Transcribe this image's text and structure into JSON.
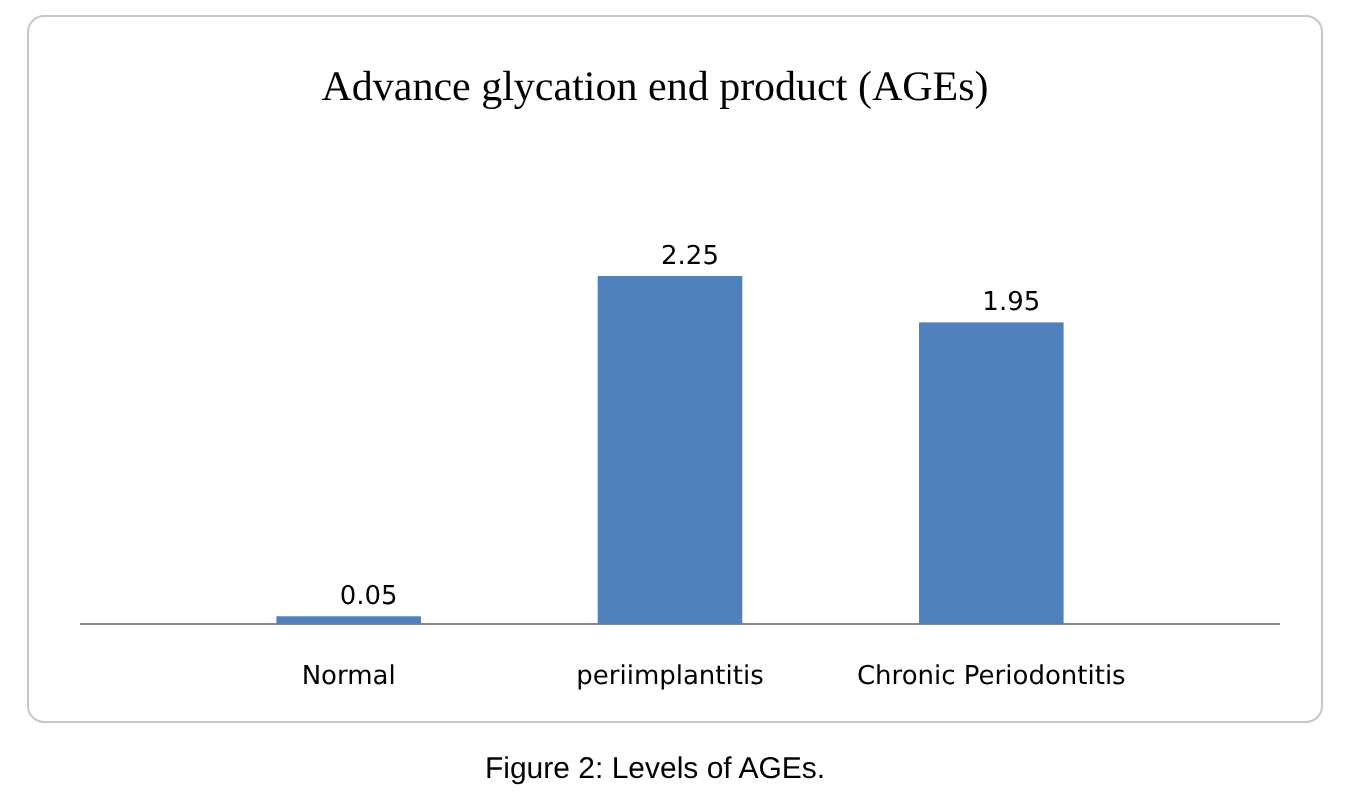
{
  "chart_data": {
    "type": "bar",
    "title": "Advance glycation end product (AGEs)",
    "categories": [
      "Normal",
      "periimplantitis",
      "Chronic Periodontitis"
    ],
    "values": [
      0.05,
      2.25,
      1.95
    ],
    "color": "#4f81bd",
    "data_labels": true,
    "annotations": [
      "Figure 2: Levels of AGEs."
    ]
  }
}
